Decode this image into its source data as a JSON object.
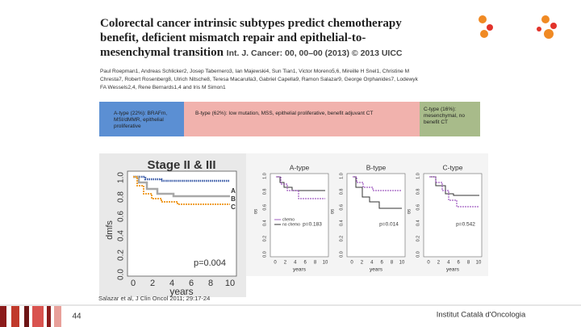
{
  "paper": {
    "title": "Colorectal cancer intrinsic subtypes predict chemotherapy benefit, deficient mismatch repair and epithelial-to-mesenchymal transition",
    "citation": "Int. J. Cancer: 00, 00–00 (2013) © 2013 UICC",
    "authors": "Paul Roepman1, Andreas Schlicker2, Josep Tabernero3, Ian Majewski4, Sun Tian1, Victor Moreno5,6, Mireille H Snel1, Christine M Chresta7, Robert Rosenberg8, Ulrich Nitsche8, Teresa Macarulla3, Gabriel Capella9, Ramon Salazar9, George Orphanides7, Lodewyk FA Wessels2,4, Rene Bernards1,4 and Iris M Simon1"
  },
  "subtypes": [
    {
      "label": "A-type (22%): BRAFm, MSI/dMMR, epithelial proliferative"
    },
    {
      "label": "B-type (62%): low mutation, MSS, epithelial proliferative, benefit adjuvant CT"
    },
    {
      "label": "C-type (16%): mesenchymal, no benefit CT"
    }
  ],
  "stage_plot": {
    "title": "Stage II & III",
    "y_label": "dmfs",
    "x_label": "years",
    "yticks": [
      "0.0",
      "0.2",
      "0.4",
      "0.6",
      "0.8",
      "1.0"
    ],
    "xticks": [
      "0",
      "2",
      "4",
      "6",
      "8",
      "10"
    ],
    "legend": [
      "A",
      "B",
      "C"
    ],
    "p_value": "p=0.004"
  },
  "subtype_plots": {
    "y_label": "os",
    "x_label": "years",
    "yticks": [
      "0.0",
      "0.2",
      "0.4",
      "0.6",
      "0.8",
      "1.0"
    ],
    "xticks": [
      "0",
      "2",
      "4",
      "6",
      "8",
      "10"
    ],
    "legend": [
      "chemo",
      "no chemo"
    ],
    "panels": [
      {
        "title": "A-type",
        "p_value": "p=0.183"
      },
      {
        "title": "B-type",
        "p_value": "p=0.014"
      },
      {
        "title": "C-type",
        "p_value": "p=0.542"
      }
    ]
  },
  "source": "Salazar et al, J Clin Oncol 2011; 29:17-24",
  "footer": {
    "page": "44",
    "institution": "Institut Català d'Oncologia"
  }
}
